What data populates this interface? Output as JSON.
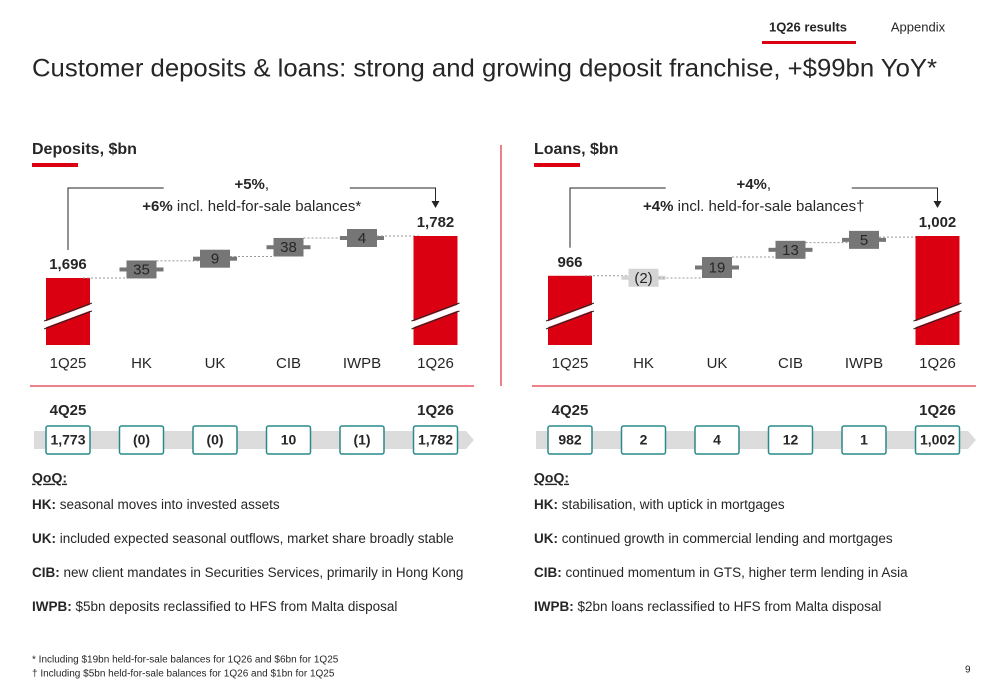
{
  "header": {
    "tabs": [
      "1Q26 results",
      "Appendix"
    ],
    "title": "Customer deposits & loans: strong and growing deposit franchise, +$99bn YoY*"
  },
  "chart_data": [
    {
      "type": "waterfall",
      "title": "Deposits, $bn",
      "categories": [
        "1Q25",
        "HK",
        "UK",
        "CIB",
        "IWPB",
        "1Q26"
      ],
      "values": [
        1696,
        35,
        9,
        38,
        4,
        1782
      ],
      "value_labels": [
        "1,696",
        "35",
        "9",
        "38",
        "4",
        "1,782"
      ],
      "total_color": "#db0011",
      "increase_color": "#767676",
      "decrease_color": "#d4d4d4",
      "annotation": [
        {
          "bold": "+5%",
          "rest": ","
        },
        {
          "bold": "+6%",
          "rest": " incl. held-for-sale balances*"
        }
      ]
    },
    {
      "type": "waterfall",
      "title": "Loans, $bn",
      "categories": [
        "1Q25",
        "HK",
        "UK",
        "CIB",
        "IWPB",
        "1Q26"
      ],
      "values": [
        966,
        -2,
        19,
        13,
        5,
        1002
      ],
      "value_labels": [
        "966",
        "(2)",
        "19",
        "13",
        "5",
        "1,002"
      ],
      "total_color": "#db0011",
      "increase_color": "#767676",
      "decrease_color": "#d4d4d4",
      "annotation": [
        {
          "bold": "+4%",
          "rest": ","
        },
        {
          "bold": "+4%",
          "rest": " incl. held-for-sale balances†"
        }
      ]
    }
  ],
  "panels": [
    {
      "qoq_row": {
        "start_label": "4Q25",
        "end_label": "1Q26",
        "values": [
          "1,773",
          "(0)",
          "(0)",
          "10",
          "(1)",
          "1,782"
        ]
      },
      "notes": {
        "heading": "QoQ:",
        "items": [
          {
            "label": "HK:",
            "text": " seasonal moves into invested assets"
          },
          {
            "label": "UK:",
            "text": " included expected seasonal outflows, market share broadly stable"
          },
          {
            "label": "CIB:",
            "text": " new client mandates in Securities Services, primarily in Hong Kong"
          },
          {
            "label": "IWPB:",
            "text": " $5bn deposits reclassified to HFS from Malta disposal"
          }
        ]
      }
    },
    {
      "qoq_row": {
        "start_label": "4Q25",
        "end_label": "1Q26",
        "values": [
          "982",
          "2",
          "4",
          "12",
          "1",
          "1,002"
        ]
      },
      "notes": {
        "heading": "QoQ:",
        "items": [
          {
            "label": "HK:",
            "text": " stabilisation, with uptick in mortgages"
          },
          {
            "label": "UK:",
            "text": " continued growth in commercial lending and mortgages"
          },
          {
            "label": "CIB:",
            "text": " continued momentum in GTS, higher term lending in Asia"
          },
          {
            "label": "IWPB:",
            "text": " $2bn loans reclassified to HFS from Malta disposal"
          }
        ]
      }
    }
  ],
  "footnotes": [
    "* Including $19bn held-for-sale balances for 1Q26 and $6bn for 1Q25",
    "† Including $5bn held-for-sale balances for 1Q26 and $1bn for 1Q25"
  ],
  "page_number": "9"
}
